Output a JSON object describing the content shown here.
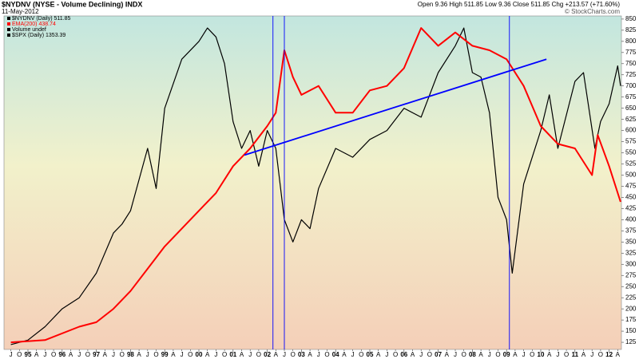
{
  "chart_data": {
    "type": "line",
    "title": "$NYDNV (NYSE - Volume Declining) INDX",
    "date": "11-May-2012",
    "quote": "Open 9.36  High 511.85  Low 9.36  Close 511.85  Chg +213.57 (+71.60%)",
    "credit": "© StockCharts.com",
    "legend": [
      {
        "label": "$NYDNV (Daily) 511.85",
        "color": "#000000"
      },
      {
        "label": "EMA(200) 438.74",
        "color": "#ff0000"
      },
      {
        "label": "Volume undef",
        "color": "#000000"
      },
      {
        "label": "$SPX (Daily) 1353.39",
        "color": "#000000"
      }
    ],
    "series": [
      {
        "color": "#000000",
        "x": [
          "1994-07",
          "1995-01",
          "1995-07",
          "1996-01",
          "1996-07",
          "1997-01",
          "1997-07",
          "1997-10",
          "1998-01",
          "1998-07",
          "1998-10",
          "1999-01",
          "1999-07",
          "2000-01",
          "2000-04",
          "2000-07",
          "2000-10",
          "2001-01",
          "2001-04",
          "2001-07",
          "2001-10",
          "2002-01",
          "2002-04",
          "2002-07",
          "2002-10",
          "2003-01",
          "2003-04",
          "2003-07",
          "2004-01",
          "2004-07",
          "2005-01",
          "2005-07",
          "2006-01",
          "2006-07",
          "2007-01",
          "2007-07",
          "2007-10",
          "2008-01",
          "2008-04",
          "2008-07",
          "2008-10",
          "2009-01",
          "2009-03",
          "2009-07",
          "2010-01",
          "2010-04",
          "2010-07",
          "2011-01",
          "2011-04",
          "2011-08",
          "2011-10",
          "2012-01",
          "2012-04",
          "2012-05"
        ],
        "values": [
          120,
          130,
          160,
          200,
          225,
          280,
          370,
          390,
          420,
          560,
          470,
          650,
          760,
          800,
          830,
          810,
          750,
          620,
          560,
          600,
          520,
          600,
          560,
          400,
          350,
          400,
          380,
          470,
          560,
          540,
          580,
          600,
          650,
          630,
          730,
          790,
          830,
          730,
          720,
          640,
          450,
          400,
          280,
          480,
          600,
          680,
          560,
          710,
          730,
          560,
          620,
          660,
          745,
          700
        ]
      },
      {
        "color": "#ff0000",
        "x": [
          "1994-07",
          "1995-07",
          "1996-07",
          "1997-01",
          "1997-07",
          "1998-01",
          "1998-07",
          "1999-01",
          "1999-07",
          "2000-01",
          "2000-07",
          "2001-01",
          "2001-07",
          "2002-01",
          "2002-04",
          "2002-07",
          "2002-10",
          "2003-01",
          "2003-07",
          "2004-01",
          "2004-07",
          "2005-01",
          "2005-07",
          "2006-01",
          "2006-07",
          "2007-01",
          "2007-07",
          "2008-01",
          "2008-07",
          "2009-01",
          "2009-07",
          "2010-01",
          "2010-07",
          "2011-01",
          "2011-07",
          "2011-09",
          "2012-01",
          "2012-05"
        ],
        "values": [
          125,
          130,
          160,
          170,
          200,
          240,
          290,
          340,
          380,
          420,
          460,
          520,
          560,
          610,
          640,
          780,
          720,
          680,
          700,
          640,
          640,
          690,
          700,
          740,
          830,
          790,
          820,
          790,
          780,
          760,
          700,
          610,
          570,
          560,
          500,
          590,
          520,
          440
        ]
      }
    ],
    "trend_line": {
      "x": [
        "2001-05",
        "2010-03"
      ],
      "values": [
        545,
        760
      ],
      "color": "#0000ff"
    },
    "vertical_lines": {
      "x": [
        "2002-03",
        "2002-07",
        "2009-02"
      ],
      "color": "#0000ff"
    },
    "ylim": [
      109,
      857
    ],
    "yticks": [
      125,
      150,
      175,
      200,
      225,
      250,
      275,
      300,
      325,
      350,
      375,
      400,
      425,
      450,
      475,
      500,
      525,
      550,
      575,
      600,
      625,
      650,
      675,
      700,
      725,
      750,
      775,
      800,
      825,
      850
    ],
    "xticks": [
      {
        "value": "1994-07",
        "label": "J"
      },
      {
        "value": "1994-10",
        "label": "O"
      },
      {
        "value": "1995-01",
        "label": "95"
      },
      {
        "value": "1995-04",
        "label": "A"
      },
      {
        "value": "1995-07",
        "label": "J"
      },
      {
        "value": "1995-10",
        "label": "O"
      },
      {
        "value": "1996-01",
        "label": "96"
      },
      {
        "value": "1996-04",
        "label": "A"
      },
      {
        "value": "1996-07",
        "label": "J"
      },
      {
        "value": "1996-10",
        "label": "O"
      },
      {
        "value": "1997-01",
        "label": "97"
      },
      {
        "value": "1997-04",
        "label": "A"
      },
      {
        "value": "1997-07",
        "label": "J"
      },
      {
        "value": "1997-10",
        "label": "O"
      },
      {
        "value": "1998-01",
        "label": "98"
      },
      {
        "value": "1998-04",
        "label": "A"
      },
      {
        "value": "1998-07",
        "label": "J"
      },
      {
        "value": "1998-10",
        "label": "O"
      },
      {
        "value": "1999-01",
        "label": "99"
      },
      {
        "value": "1999-04",
        "label": "A"
      },
      {
        "value": "1999-07",
        "label": "J"
      },
      {
        "value": "1999-10",
        "label": "O"
      },
      {
        "value": "2000-01",
        "label": "00"
      },
      {
        "value": "2000-04",
        "label": "A"
      },
      {
        "value": "2000-07",
        "label": "J"
      },
      {
        "value": "2000-10",
        "label": "O"
      },
      {
        "value": "2001-01",
        "label": "01"
      },
      {
        "value": "2001-04",
        "label": "A"
      },
      {
        "value": "2001-07",
        "label": "J"
      },
      {
        "value": "2001-10",
        "label": "O"
      },
      {
        "value": "2002-01",
        "label": "02"
      },
      {
        "value": "2002-04",
        "label": "A"
      },
      {
        "value": "2002-07",
        "label": "J"
      },
      {
        "value": "2002-10",
        "label": "O"
      },
      {
        "value": "2003-01",
        "label": "03"
      },
      {
        "value": "2003-04",
        "label": "A"
      },
      {
        "value": "2003-07",
        "label": "J"
      },
      {
        "value": "2003-10",
        "label": "O"
      },
      {
        "value": "2004-01",
        "label": "04"
      },
      {
        "value": "2004-04",
        "label": "A"
      },
      {
        "value": "2004-07",
        "label": "J"
      },
      {
        "value": "2004-10",
        "label": "O"
      },
      {
        "value": "2005-01",
        "label": "05"
      },
      {
        "value": "2005-04",
        "label": "A"
      },
      {
        "value": "2005-07",
        "label": "J"
      },
      {
        "value": "2005-10",
        "label": "O"
      },
      {
        "value": "2006-01",
        "label": "06"
      },
      {
        "value": "2006-04",
        "label": "A"
      },
      {
        "value": "2006-07",
        "label": "J"
      },
      {
        "value": "2006-10",
        "label": "O"
      },
      {
        "value": "2007-01",
        "label": "07"
      },
      {
        "value": "2007-04",
        "label": "A"
      },
      {
        "value": "2007-07",
        "label": "J"
      },
      {
        "value": "2007-10",
        "label": "O"
      },
      {
        "value": "2008-01",
        "label": "08"
      },
      {
        "value": "2008-04",
        "label": "A"
      },
      {
        "value": "2008-07",
        "label": "J"
      },
      {
        "value": "2008-10",
        "label": "O"
      },
      {
        "value": "2009-01",
        "label": "09"
      },
      {
        "value": "2009-04",
        "label": "A"
      },
      {
        "value": "2009-07",
        "label": "J"
      },
      {
        "value": "2009-10",
        "label": "O"
      },
      {
        "value": "2010-01",
        "label": "10"
      },
      {
        "value": "2010-04",
        "label": "A"
      },
      {
        "value": "2010-07",
        "label": "J"
      },
      {
        "value": "2010-10",
        "label": "O"
      },
      {
        "value": "2011-01",
        "label": "11"
      },
      {
        "value": "2011-04",
        "label": "A"
      },
      {
        "value": "2011-07",
        "label": "J"
      },
      {
        "value": "2011-10",
        "label": "O"
      },
      {
        "value": "2012-01",
        "label": "12"
      },
      {
        "value": "2012-04",
        "label": "A"
      }
    ]
  }
}
